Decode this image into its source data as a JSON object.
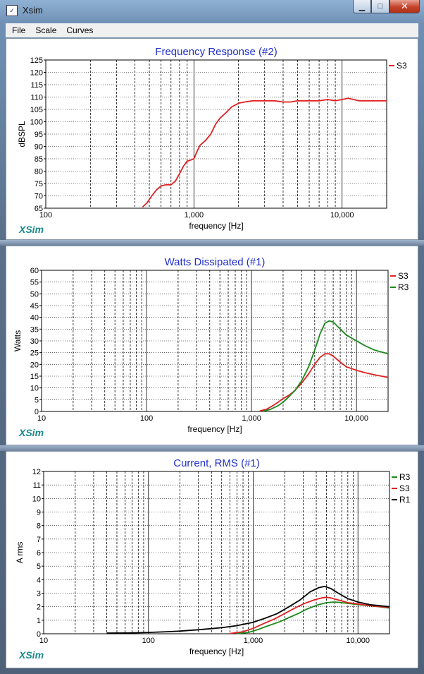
{
  "window": {
    "title": "Xsim",
    "icon_name": "xsim-app-icon",
    "controls": {
      "minimize": "minimize-icon",
      "maximize": "maximize-icon",
      "close": "close-icon"
    }
  },
  "menu": {
    "items": [
      {
        "label": "File"
      },
      {
        "label": "Scale"
      },
      {
        "label": "Curves"
      }
    ]
  },
  "charts": [
    {
      "id": "frequency-response",
      "chart_data": {
        "type": "line",
        "title": "Frequency Response (#2)",
        "xlabel": "frequency [Hz]",
        "ylabel": "dBSPL",
        "xscale": "log",
        "xlim": [
          100,
          20000
        ],
        "ylim": [
          65,
          125
        ],
        "yticks": [
          65,
          70,
          75,
          80,
          85,
          90,
          95,
          100,
          105,
          110,
          115,
          120,
          125
        ],
        "xtick_labels": [
          {
            "x": 100,
            "label": "100"
          },
          {
            "x": 1000,
            "label": "1,000"
          },
          {
            "x": 10000,
            "label": "10,000"
          }
        ],
        "grid": true,
        "legend_position": "right",
        "watermark": "XSim",
        "series": [
          {
            "name": "S3",
            "color": "#e02020",
            "points": [
              [
                450,
                65.5
              ],
              [
                480,
                67
              ],
              [
                520,
                70
              ],
              [
                560,
                72.5
              ],
              [
                600,
                74
              ],
              [
                650,
                74.5
              ],
              [
                700,
                74.5
              ],
              [
                750,
                76
              ],
              [
                800,
                79
              ],
              [
                850,
                82
              ],
              [
                900,
                84
              ],
              [
                950,
                84.5
              ],
              [
                1000,
                85
              ],
              [
                1050,
                88
              ],
              [
                1100,
                90.5
              ],
              [
                1200,
                92.5
              ],
              [
                1300,
                95
              ],
              [
                1400,
                99
              ],
              [
                1500,
                101.5
              ],
              [
                1600,
                103
              ],
              [
                1700,
                104.5
              ],
              [
                1800,
                106
              ],
              [
                2000,
                107.5
              ],
              [
                2200,
                108
              ],
              [
                2500,
                108.5
              ],
              [
                2800,
                108.5
              ],
              [
                3200,
                108.5
              ],
              [
                3500,
                108.5
              ],
              [
                4000,
                108
              ],
              [
                4500,
                108
              ],
              [
                5000,
                108.5
              ],
              [
                6000,
                108.5
              ],
              [
                7000,
                108.5
              ],
              [
                8000,
                109
              ],
              [
                9000,
                108.5
              ],
              [
                10000,
                109
              ],
              [
                11000,
                109.5
              ],
              [
                12000,
                109
              ],
              [
                13000,
                108.5
              ],
              [
                15000,
                108.5
              ],
              [
                20000,
                108.5
              ]
            ]
          }
        ]
      }
    },
    {
      "id": "watts-dissipated",
      "chart_data": {
        "type": "line",
        "title": "Watts Dissipated (#1)",
        "xlabel": "frequency [Hz]",
        "ylabel": "Watts",
        "xscale": "log",
        "xlim": [
          10,
          20000
        ],
        "ylim": [
          0,
          60
        ],
        "yticks": [
          0,
          5,
          10,
          15,
          20,
          25,
          30,
          35,
          40,
          45,
          50,
          55,
          60
        ],
        "xtick_labels": [
          {
            "x": 10,
            "label": "10"
          },
          {
            "x": 100,
            "label": "100"
          },
          {
            "x": 1000,
            "label": "1,000"
          },
          {
            "x": 10000,
            "label": "10,000"
          }
        ],
        "grid": true,
        "legend_position": "right",
        "watermark": "XSim",
        "series": [
          {
            "name": "S3",
            "color": "#e02020",
            "points": [
              [
                1200,
                0.2
              ],
              [
                1400,
                1
              ],
              [
                1600,
                2.5
              ],
              [
                1800,
                4
              ],
              [
                2000,
                5.5
              ],
              [
                2300,
                7
              ],
              [
                2600,
                9
              ],
              [
                3000,
                12
              ],
              [
                3500,
                16
              ],
              [
                4000,
                20
              ],
              [
                4500,
                23
              ],
              [
                5000,
                24.5
              ],
              [
                5500,
                24.5
              ],
              [
                6000,
                23.5
              ],
              [
                7000,
                21
              ],
              [
                8000,
                19
              ],
              [
                10000,
                17.5
              ],
              [
                12000,
                16.5
              ],
              [
                15000,
                15.5
              ],
              [
                20000,
                14.5
              ]
            ]
          },
          {
            "name": "R3",
            "color": "#1a8a1a",
            "points": [
              [
                1300,
                0.2
              ],
              [
                1500,
                0.8
              ],
              [
                1800,
                2.5
              ],
              [
                2000,
                4
              ],
              [
                2300,
                6.5
              ],
              [
                2600,
                9
              ],
              [
                3000,
                13
              ],
              [
                3500,
                19
              ],
              [
                4000,
                26
              ],
              [
                4500,
                33
              ],
              [
                5000,
                37.5
              ],
              [
                5500,
                38.5
              ],
              [
                6000,
                38
              ],
              [
                7000,
                35
              ],
              [
                8000,
                32.5
              ],
              [
                10000,
                30
              ],
              [
                12000,
                28
              ],
              [
                15000,
                26
              ],
              [
                20000,
                24.5
              ]
            ]
          }
        ]
      }
    },
    {
      "id": "current-rms",
      "chart_data": {
        "type": "line",
        "title": "Current, RMS (#1)",
        "xlabel": "frequency [Hz]",
        "ylabel": "A rms",
        "xscale": "log",
        "xlim": [
          10,
          20000
        ],
        "ylim": [
          0,
          12
        ],
        "yticks": [
          0,
          1,
          2,
          3,
          4,
          5,
          6,
          7,
          8,
          9,
          10,
          11,
          12
        ],
        "xtick_labels": [
          {
            "x": 10,
            "label": "10"
          },
          {
            "x": 100,
            "label": "100"
          },
          {
            "x": 1000,
            "label": "1,000"
          },
          {
            "x": 10000,
            "label": "10,000"
          }
        ],
        "grid": true,
        "legend_position": "right",
        "watermark": "XSim",
        "series": [
          {
            "name": "R3",
            "color": "#1a8a1a",
            "points": [
              [
                700,
                0.02
              ],
              [
                900,
                0.1
              ],
              [
                1100,
                0.3
              ],
              [
                1400,
                0.6
              ],
              [
                1800,
                0.9
              ],
              [
                2200,
                1.2
              ],
              [
                2700,
                1.5
              ],
              [
                3200,
                1.8
              ],
              [
                4000,
                2.1
              ],
              [
                5000,
                2.3
              ],
              [
                6000,
                2.35
              ],
              [
                7000,
                2.3
              ],
              [
                9000,
                2.2
              ],
              [
                12000,
                2.1
              ],
              [
                16000,
                2
              ],
              [
                20000,
                1.9
              ]
            ]
          },
          {
            "name": "S3",
            "color": "#e02020",
            "points": [
              [
                600,
                0.02
              ],
              [
                800,
                0.15
              ],
              [
                1000,
                0.4
              ],
              [
                1300,
                0.8
              ],
              [
                1600,
                1.1
              ],
              [
                2000,
                1.5
              ],
              [
                2500,
                1.9
              ],
              [
                3000,
                2.2
              ],
              [
                3800,
                2.5
              ],
              [
                4500,
                2.65
              ],
              [
                5000,
                2.7
              ],
              [
                5500,
                2.65
              ],
              [
                6500,
                2.5
              ],
              [
                8000,
                2.3
              ],
              [
                10000,
                2.2
              ],
              [
                14000,
                2.05
              ],
              [
                20000,
                1.95
              ]
            ]
          },
          {
            "name": "R1",
            "color": "#000000",
            "points": [
              [
                40,
                0.05
              ],
              [
                60,
                0.06
              ],
              [
                80,
                0.08
              ],
              [
                100,
                0.1
              ],
              [
                150,
                0.15
              ],
              [
                200,
                0.2
              ],
              [
                300,
                0.3
              ],
              [
                400,
                0.38
              ],
              [
                500,
                0.45
              ],
              [
                700,
                0.6
              ],
              [
                1000,
                0.85
              ],
              [
                1300,
                1.15
              ],
              [
                1700,
                1.5
              ],
              [
                2200,
                2
              ],
              [
                2800,
                2.5
              ],
              [
                3500,
                3.1
              ],
              [
                4200,
                3.4
              ],
              [
                4800,
                3.5
              ],
              [
                5500,
                3.35
              ],
              [
                6500,
                3
              ],
              [
                8000,
                2.6
              ],
              [
                10000,
                2.35
              ],
              [
                13000,
                2.15
              ],
              [
                20000,
                2
              ]
            ]
          }
        ]
      }
    }
  ]
}
